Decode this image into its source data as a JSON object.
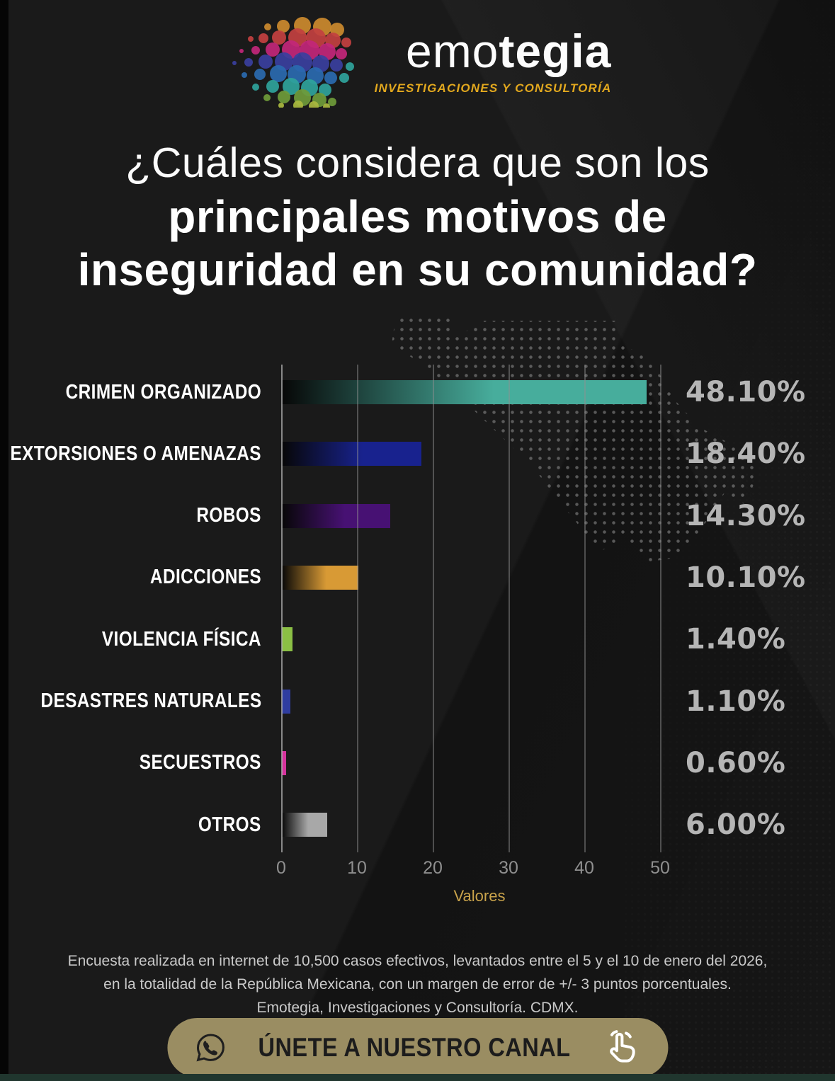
{
  "logo": {
    "brand_light": "emo",
    "brand_bold": "tegia",
    "subtitle": "INVESTIGACIONES Y CONSULTORÍA"
  },
  "title": {
    "line1": "¿Cuáles considera que son los",
    "line2": "principales motivos de",
    "line3": "inseguridad en su comunidad?"
  },
  "chart_data": {
    "type": "bar",
    "orientation": "horizontal",
    "categories": [
      "CRIMEN ORGANIZADO",
      "EXTORSIONES O AMENAZAS",
      "ROBOS",
      "ADICCIONES",
      "VIOLENCIA FÍSICA",
      "DESASTRES NATURALES",
      "SECUESTROS",
      "OTROS"
    ],
    "values": [
      48.1,
      18.4,
      14.3,
      10.1,
      1.4,
      1.1,
      0.6,
      6.0
    ],
    "value_labels": [
      "48.10%",
      "18.40%",
      "14.30%",
      "10.10%",
      "1.40%",
      "1.10%",
      "0.60%",
      "6.00%"
    ],
    "bar_colors": [
      "#47ad9c",
      "#18228e",
      "#471173",
      "#d89a35",
      "#8bbf45",
      "#2f3da0",
      "#d5339d",
      "#a8a8a8"
    ],
    "bar_gradient_from": "#070707",
    "xlabel": "Valores",
    "x_ticks": [
      "0",
      "10",
      "20",
      "30",
      "40",
      "50"
    ],
    "x_tick_values": [
      0,
      10,
      20,
      30,
      40,
      50
    ],
    "xlim": [
      0,
      55.3
    ],
    "grid": true,
    "legend_position": "none",
    "value_label_color": "#b5b5b5",
    "tick_color": "#8f8f8f",
    "axis_label_color": "#c9a34b"
  },
  "footer": {
    "line1": "Encuesta realizada en internet de 10,500 casos efectivos, levantados entre el 5 y el 10 de enero del 2026,",
    "line2": "en la totalidad de la República Mexicana, con un margen de error de +/- 3 puntos porcentuales.",
    "line3": "Emotegia, Investigaciones y Consultoría. CDMX."
  },
  "cta": {
    "label": "ÚNETE A NUESTRO CANAL",
    "background": "#9a8d62"
  }
}
